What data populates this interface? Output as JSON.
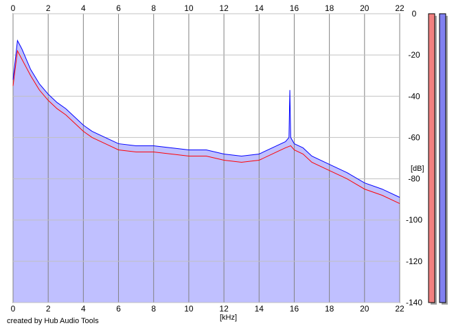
{
  "chart_data": {
    "type": "area",
    "xlabel": "[kHz]",
    "ylabel": "[dB]",
    "xlim": [
      0,
      22
    ],
    "ylim": [
      -140,
      0
    ],
    "x_ticks": [
      0,
      2,
      4,
      6,
      8,
      10,
      12,
      14,
      16,
      18,
      20,
      22
    ],
    "y_ticks": [
      0,
      -20,
      -40,
      -60,
      -80,
      -100,
      -120,
      -140
    ],
    "grid": true,
    "series": [
      {
        "color": "#ff0000",
        "x": [
          0,
          0.25,
          0.5,
          0.75,
          1,
          1.5,
          2,
          2.5,
          3,
          3.5,
          4,
          4.5,
          5,
          5.5,
          6,
          7,
          8,
          9,
          10,
          11,
          12,
          13,
          14,
          15,
          15.5,
          15.8,
          16,
          16.5,
          17,
          18,
          19,
          20,
          21,
          22
        ],
        "values": [
          -35,
          -18,
          -22,
          -26,
          -30,
          -37,
          -42,
          -46,
          -49,
          -53,
          -57,
          -60,
          -62,
          -64,
          -66,
          -67,
          -67,
          -68,
          -69,
          -69,
          -71,
          -72,
          -71,
          -67,
          -65,
          -64,
          -66,
          -68,
          -72,
          -76,
          -80,
          -85,
          -88,
          -92
        ]
      },
      {
        "color": "#0000ff",
        "x": [
          0,
          0.25,
          0.5,
          0.75,
          1,
          1.5,
          2,
          2.5,
          3,
          3.5,
          4,
          4.5,
          5,
          5.5,
          6,
          7,
          8,
          9,
          10,
          11,
          12,
          13,
          14,
          15,
          15.5,
          15.7,
          15.75,
          15.8,
          16,
          16.5,
          17,
          18,
          19,
          20,
          21,
          22
        ],
        "values": [
          -32,
          -13,
          -17,
          -22,
          -27,
          -34,
          -39,
          -43,
          -46,
          -50,
          -54,
          -57,
          -59,
          -61,
          -63,
          -64,
          -64,
          -65,
          -66,
          -66,
          -68,
          -69,
          -68,
          -64,
          -62,
          -60,
          -37,
          -60,
          -63,
          -65,
          -69,
          -73,
          -77,
          -82,
          -85,
          -89
        ]
      }
    ],
    "level_meters": [
      {
        "color": "#f08080",
        "level": 1.0
      },
      {
        "color": "#8080f0",
        "level": 1.0
      }
    ]
  },
  "footer": {
    "credit": "created by Hub Audio Tools"
  }
}
